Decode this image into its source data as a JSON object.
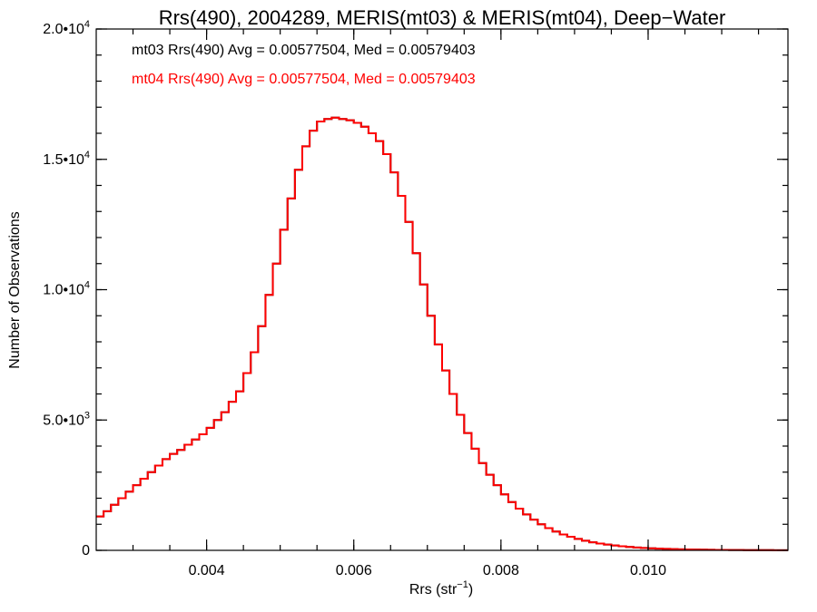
{
  "chart_data": {
    "type": "line",
    "title": "Rrs(490), 2004289, MERIS(mt03) & MERIS(mt04), Deep−Water",
    "xlabel_main": "Rrs (str",
    "xlabel_sup": "−1",
    "xlabel_end": ")",
    "ylabel": "Number of Observations",
    "xlim": [
      0.0025,
      0.0119
    ],
    "ylim": [
      0,
      20000
    ],
    "grid": false,
    "step": true,
    "x_ticks": [
      {
        "value": 0.004,
        "label": "0.004"
      },
      {
        "value": 0.006,
        "label": "0.006"
      },
      {
        "value": 0.008,
        "label": "0.008"
      },
      {
        "value": 0.01,
        "label": "0.010"
      }
    ],
    "x_minor_step": 0.0005,
    "y_ticks": [
      {
        "value": 0,
        "base": "0",
        "exp": ""
      },
      {
        "value": 5000,
        "base": "5.0•10",
        "exp": "3"
      },
      {
        "value": 10000,
        "base": "1.0•10",
        "exp": "4"
      },
      {
        "value": 15000,
        "base": "1.5•10",
        "exp": "4"
      },
      {
        "value": 20000,
        "base": "2.0•10",
        "exp": "4"
      }
    ],
    "y_minor_step": 1000,
    "annotations": [
      {
        "text": "mt03 Rrs(490) Avg = 0.00577504, Med = 0.00579403",
        "color": "#000000"
      },
      {
        "text": "mt04 Rrs(490) Avg = 0.00577504, Med = 0.00579403",
        "color": "#ff0000"
      }
    ],
    "series": [
      {
        "name": "mt03",
        "color": "#000000",
        "x": [
          0.0025,
          0.0026,
          0.0027,
          0.0028,
          0.0029,
          0.003,
          0.0031,
          0.0032,
          0.0033,
          0.0034,
          0.0035,
          0.0036,
          0.0037,
          0.0038,
          0.0039,
          0.004,
          0.0041,
          0.0042,
          0.0043,
          0.0044,
          0.0045,
          0.0046,
          0.0047,
          0.0048,
          0.0049,
          0.005,
          0.0051,
          0.0052,
          0.0053,
          0.0054,
          0.0055,
          0.0056,
          0.0057,
          0.0058,
          0.0059,
          0.006,
          0.0061,
          0.0062,
          0.0063,
          0.0064,
          0.0065,
          0.0066,
          0.0067,
          0.0068,
          0.0069,
          0.007,
          0.0071,
          0.0072,
          0.0073,
          0.0074,
          0.0075,
          0.0076,
          0.0077,
          0.0078,
          0.0079,
          0.008,
          0.0081,
          0.0082,
          0.0083,
          0.0084,
          0.0085,
          0.0086,
          0.0087,
          0.0088,
          0.0089,
          0.009,
          0.0091,
          0.0092,
          0.0093,
          0.0094,
          0.0095,
          0.0096,
          0.0097,
          0.0098,
          0.0099,
          0.01,
          0.0101,
          0.0102,
          0.0103,
          0.0104,
          0.0105,
          0.0106,
          0.0107,
          0.0108,
          0.0109,
          0.011,
          0.0111,
          0.0112,
          0.0113,
          0.0114,
          0.0115,
          0.0116,
          0.0117,
          0.0118
        ],
        "values": [
          1300,
          1500,
          1750,
          2000,
          2250,
          2500,
          2750,
          3000,
          3250,
          3500,
          3700,
          3850,
          4050,
          4250,
          4450,
          4700,
          5000,
          5300,
          5700,
          6100,
          6800,
          7600,
          8600,
          9800,
          11000,
          12300,
          13500,
          14600,
          15500,
          16100,
          16450,
          16550,
          16600,
          16550,
          16500,
          16400,
          16250,
          16000,
          15700,
          15200,
          14500,
          13600,
          12600,
          11400,
          10200,
          9000,
          7900,
          6900,
          6000,
          5200,
          4500,
          3900,
          3350,
          2900,
          2500,
          2150,
          1850,
          1600,
          1380,
          1180,
          1000,
          850,
          720,
          610,
          520,
          440,
          370,
          310,
          260,
          220,
          185,
          155,
          130,
          110,
          92,
          78,
          66,
          56,
          48,
          41,
          35,
          30,
          26,
          22,
          19,
          16,
          14,
          12,
          10,
          9,
          8,
          7,
          6,
          5
        ]
      },
      {
        "name": "mt04",
        "color": "#ff0000",
        "x": [
          0.0025,
          0.0026,
          0.0027,
          0.0028,
          0.0029,
          0.003,
          0.0031,
          0.0032,
          0.0033,
          0.0034,
          0.0035,
          0.0036,
          0.0037,
          0.0038,
          0.0039,
          0.004,
          0.0041,
          0.0042,
          0.0043,
          0.0044,
          0.0045,
          0.0046,
          0.0047,
          0.0048,
          0.0049,
          0.005,
          0.0051,
          0.0052,
          0.0053,
          0.0054,
          0.0055,
          0.0056,
          0.0057,
          0.0058,
          0.0059,
          0.006,
          0.0061,
          0.0062,
          0.0063,
          0.0064,
          0.0065,
          0.0066,
          0.0067,
          0.0068,
          0.0069,
          0.007,
          0.0071,
          0.0072,
          0.0073,
          0.0074,
          0.0075,
          0.0076,
          0.0077,
          0.0078,
          0.0079,
          0.008,
          0.0081,
          0.0082,
          0.0083,
          0.0084,
          0.0085,
          0.0086,
          0.0087,
          0.0088,
          0.0089,
          0.009,
          0.0091,
          0.0092,
          0.0093,
          0.0094,
          0.0095,
          0.0096,
          0.0097,
          0.0098,
          0.0099,
          0.01,
          0.0101,
          0.0102,
          0.0103,
          0.0104,
          0.0105,
          0.0106,
          0.0107,
          0.0108,
          0.0109,
          0.011,
          0.0111,
          0.0112,
          0.0113,
          0.0114,
          0.0115,
          0.0116,
          0.0117,
          0.0118
        ],
        "values": [
          1300,
          1500,
          1750,
          2000,
          2250,
          2500,
          2750,
          3000,
          3250,
          3500,
          3700,
          3850,
          4050,
          4250,
          4450,
          4700,
          5000,
          5300,
          5700,
          6100,
          6800,
          7600,
          8600,
          9800,
          11000,
          12300,
          13500,
          14600,
          15500,
          16100,
          16450,
          16550,
          16600,
          16550,
          16500,
          16400,
          16250,
          16000,
          15700,
          15200,
          14500,
          13600,
          12600,
          11400,
          10200,
          9000,
          7900,
          6900,
          6000,
          5200,
          4500,
          3900,
          3350,
          2900,
          2500,
          2150,
          1850,
          1600,
          1380,
          1180,
          1000,
          850,
          720,
          610,
          520,
          440,
          370,
          310,
          260,
          220,
          185,
          155,
          130,
          110,
          92,
          78,
          66,
          56,
          48,
          41,
          35,
          30,
          26,
          22,
          19,
          16,
          14,
          12,
          10,
          9,
          8,
          7,
          6,
          5
        ]
      }
    ]
  }
}
